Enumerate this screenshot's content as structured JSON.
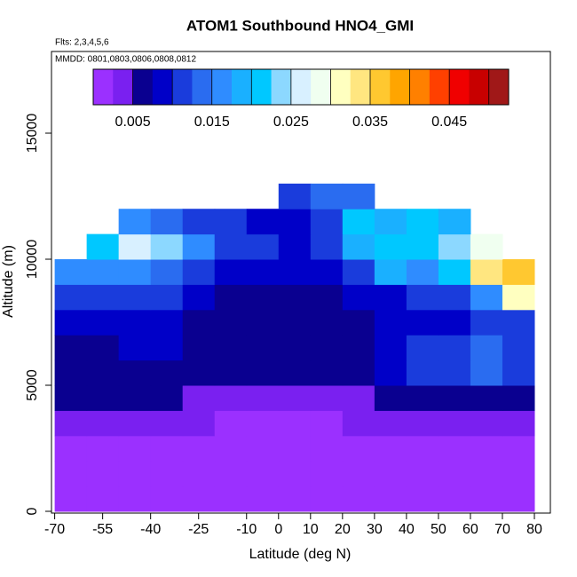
{
  "chart_data": {
    "type": "heatmap",
    "title": "ATOM1 Southbound HNO4_GMI",
    "subtitle": "Flts: 2,3,4,5,6",
    "annotation": "MMDD: 0801,0803,0806,0808,0812",
    "x_label": "Latitude (deg N)",
    "y_label": "Altitude (m)",
    "xlim": [
      -71,
      85
    ],
    "ylim": [
      -70,
      18240
    ],
    "xticks": [
      -70,
      -55,
      -40,
      -25,
      -10,
      0,
      10,
      20,
      30,
      40,
      50,
      60,
      70,
      80
    ],
    "yticks": [
      0,
      5000,
      10000,
      15000
    ],
    "x_edges": [
      -70,
      -60,
      -50,
      -40,
      -30,
      -20,
      -10,
      0,
      10,
      20,
      30,
      40,
      50,
      60,
      70,
      80
    ],
    "y_edges": [
      0,
      1000,
      2000,
      3000,
      4000,
      5000,
      6000,
      7000,
      8000,
      9000,
      10000,
      11000,
      12000,
      13000
    ],
    "z": [
      [
        0.001,
        0.001,
        0.001,
        0.001,
        0.001,
        0.001,
        0.001,
        0.001,
        0.001,
        0.001,
        0.001,
        0.001,
        0.001,
        0.001,
        0.001
      ],
      [
        0.0015,
        0.0015,
        0.0015,
        0.0015,
        0.0015,
        0.001,
        0.001,
        0.001,
        0.001,
        0.0015,
        0.0015,
        0.0015,
        0.0015,
        0.0015,
        0.0015
      ],
      [
        0.002,
        0.002,
        0.002,
        0.002,
        0.002,
        0.0015,
        0.0015,
        0.0015,
        0.0015,
        0.002,
        0.002,
        0.002,
        0.002,
        0.002,
        0.002
      ],
      [
        0.004,
        0.004,
        0.003,
        0.003,
        0.003,
        0.002,
        0.002,
        0.002,
        0.002,
        0.003,
        0.003,
        0.003,
        0.004,
        0.004,
        0.004
      ],
      [
        0.005,
        0.005,
        0.005,
        0.005,
        0.004,
        0.004,
        0.004,
        0.004,
        0.004,
        0.004,
        0.005,
        0.005,
        0.005,
        0.005,
        0.005
      ],
      [
        0.006,
        0.006,
        0.006,
        0.006,
        0.005,
        0.005,
        0.005,
        0.005,
        0.005,
        0.006,
        0.008,
        0.012,
        0.012,
        0.013,
        0.012
      ],
      [
        0.007,
        0.007,
        0.008,
        0.008,
        0.006,
        0.006,
        0.006,
        0.006,
        0.006,
        0.007,
        0.009,
        0.012,
        0.012,
        0.013,
        0.012
      ],
      [
        0.008,
        0.008,
        0.008,
        0.008,
        0.007,
        0.006,
        0.006,
        0.006,
        0.006,
        0.007,
        0.008,
        0.009,
        0.009,
        0.011,
        0.012
      ],
      [
        0.012,
        0.012,
        0.011,
        0.01,
        0.008,
        0.007,
        0.007,
        0.007,
        0.007,
        0.008,
        0.009,
        0.01,
        0.012,
        0.016,
        0.03
      ],
      [
        0.016,
        0.017,
        0.016,
        0.013,
        0.011,
        0.009,
        0.008,
        0.008,
        0.008,
        0.012,
        0.018,
        0.016,
        0.02,
        0.033,
        0.036
      ],
      [
        null,
        0.022,
        0.026,
        0.024,
        0.015,
        0.012,
        0.01,
        0.009,
        0.01,
        0.018,
        0.022,
        0.02,
        0.024,
        0.028,
        null
      ],
      [
        null,
        null,
        0.015,
        0.013,
        0.012,
        0.011,
        0.008,
        0.008,
        0.012,
        0.02,
        0.019,
        0.02,
        0.018,
        null,
        null
      ],
      [
        null,
        null,
        null,
        null,
        null,
        null,
        null,
        0.012,
        0.013,
        0.014,
        null,
        null,
        null,
        null,
        null
      ]
    ],
    "clim": [
      0,
      0.0525
    ],
    "cticks": [
      0.005,
      0.015,
      0.025,
      0.035,
      0.045
    ],
    "colors": [
      "#9b30ff",
      "#7a20f0",
      "#0a0090",
      "#0000c8",
      "#1a3cdc",
      "#2a6cf0",
      "#2f8cff",
      "#1ab0ff",
      "#00c8ff",
      "#8cd8ff",
      "#d8f0ff",
      "#f0fff0",
      "#ffffc0",
      "#ffe680",
      "#ffc830",
      "#ffa500",
      "#ff8000",
      "#ff4000",
      "#f00000",
      "#c80000",
      "#a01818"
    ]
  }
}
